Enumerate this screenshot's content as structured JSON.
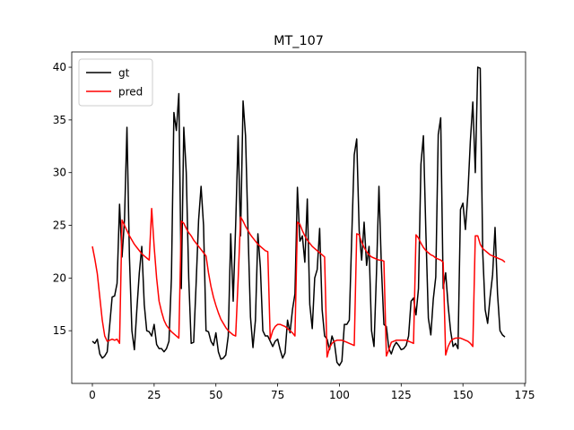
{
  "chart_data": {
    "type": "line",
    "title": "MT_107",
    "x": [
      0,
      1,
      2,
      3,
      4,
      5,
      6,
      7,
      8,
      9,
      10,
      11,
      12,
      13,
      14,
      15,
      16,
      17,
      18,
      19,
      20,
      21,
      22,
      23,
      24,
      25,
      26,
      27,
      28,
      29,
      30,
      31,
      32,
      33,
      34,
      35,
      36,
      37,
      38,
      39,
      40,
      41,
      42,
      43,
      44,
      45,
      46,
      47,
      48,
      49,
      50,
      51,
      52,
      53,
      54,
      55,
      56,
      57,
      58,
      59,
      60,
      61,
      62,
      63,
      64,
      65,
      66,
      67,
      68,
      69,
      70,
      71,
      72,
      73,
      74,
      75,
      76,
      77,
      78,
      79,
      80,
      81,
      82,
      83,
      84,
      85,
      86,
      87,
      88,
      89,
      90,
      91,
      92,
      93,
      94,
      95,
      96,
      97,
      98,
      99,
      100,
      101,
      102,
      103,
      104,
      105,
      106,
      107,
      108,
      109,
      110,
      111,
      112,
      113,
      114,
      115,
      116,
      117,
      118,
      119,
      120,
      121,
      122,
      123,
      124,
      125,
      126,
      127,
      128,
      129,
      130,
      131,
      132,
      133,
      134,
      135,
      136,
      137,
      138,
      139,
      140,
      141,
      142,
      143,
      144,
      145,
      146,
      147,
      148,
      149,
      150,
      151,
      152,
      153,
      154,
      155,
      156,
      157,
      158,
      159,
      160,
      161,
      162,
      163,
      164,
      165,
      166,
      167
    ],
    "series": [
      {
        "name": "gt",
        "color": "#000000",
        "values": [
          14,
          13.8,
          14.2,
          12.8,
          12.4,
          12.6,
          13,
          15.5,
          18.2,
          18.3,
          19.5,
          27,
          22,
          25.5,
          34.3,
          22,
          15,
          13.2,
          17,
          20.5,
          23,
          17.5,
          15,
          14.9,
          14.5,
          15.6,
          13.7,
          13.3,
          13.3,
          13,
          13.3,
          14,
          20,
          35.7,
          34,
          37.5,
          19,
          34.3,
          30,
          20,
          13.8,
          13.9,
          19.5,
          25.5,
          28.7,
          25,
          15,
          14.9,
          14,
          13.6,
          14.8,
          13,
          12.3,
          12.4,
          12.7,
          14.5,
          24.2,
          17.8,
          25,
          33.5,
          24,
          36.8,
          33.5,
          24.5,
          16.3,
          13.4,
          16,
          24.2,
          21,
          15,
          14.5,
          14.5,
          14,
          13.5,
          14,
          14.2,
          13.2,
          12.4,
          12.9,
          16,
          14.8,
          17,
          18.5,
          28.6,
          23.5,
          24,
          21.5,
          27.5,
          17.5,
          15.2,
          20,
          20.8,
          24.7,
          17,
          14.5,
          14.2,
          13.2,
          14.5,
          13.8,
          12,
          11.7,
          12.1,
          15.6,
          15.6,
          16,
          24,
          31.7,
          33.2,
          24.5,
          21.7,
          25.3,
          21.2,
          23,
          15,
          13.5,
          20.5,
          28.7,
          21,
          15.6,
          15.4,
          13.3,
          12.8,
          13.5,
          13.9,
          13.6,
          13.2,
          13.3,
          13.6,
          14.5,
          17.8,
          18.1,
          16.5,
          19,
          30.8,
          33.5,
          24.3,
          16.2,
          14.6,
          18,
          20.1,
          33.6,
          35.2,
          19,
          20.5,
          17.4,
          15,
          13.5,
          13.8,
          13.3,
          26.5,
          27.1,
          24.6,
          28,
          33,
          36.7,
          30,
          40,
          39.9,
          22.5,
          17,
          15.7,
          18.2,
          20.3,
          24.8,
          18.5,
          15,
          14.6,
          14.4
        ]
      },
      {
        "name": "pred",
        "color": "#ff0000",
        "values": [
          23,
          21.8,
          20.4,
          18.2,
          16,
          14.5,
          14,
          14.1,
          14.2,
          14.1,
          14.2,
          13.8,
          25.5,
          25,
          24.5,
          24,
          23.6,
          23.2,
          22.9,
          22.6,
          22.3,
          22.1,
          21.9,
          21.7,
          26.6,
          23,
          20,
          17.8,
          16.8,
          16,
          15.5,
          15.2,
          14.9,
          14.7,
          14.5,
          14.3,
          25.4,
          25.2,
          24.7,
          24.3,
          24,
          23.6,
          23.3,
          23,
          22.7,
          22.4,
          22.1,
          20.5,
          19.2,
          18.2,
          17.4,
          16.7,
          16.1,
          15.7,
          15.3,
          15,
          14.8,
          14.6,
          14.5,
          19.8,
          25.8,
          25.4,
          24.9,
          24.5,
          24.1,
          23.8,
          23.5,
          23.2,
          23,
          22.8,
          22.6,
          22.5,
          14.2,
          15,
          15.4,
          15.6,
          15.6,
          15.5,
          15.4,
          15.2,
          15,
          14.8,
          14.5,
          25.3,
          25.1,
          24.5,
          24,
          23.6,
          23.3,
          23,
          22.8,
          22.6,
          22.4,
          22.2,
          22,
          12.5,
          13.4,
          13.8,
          14,
          14.1,
          14.1,
          14.1,
          14,
          13.9,
          13.8,
          13.7,
          13.6,
          24.2,
          24.1,
          23.4,
          22.9,
          22.5,
          22.2,
          22,
          21.9,
          21.8,
          21.7,
          21.7,
          21.6,
          12.6,
          13.2,
          13.9,
          14,
          14.1,
          14.1,
          14.1,
          14.1,
          14.1,
          14,
          13.9,
          13.8,
          24.1,
          23.8,
          23.3,
          22.9,
          22.6,
          22.4,
          22.2,
          22.1,
          21.9,
          21.8,
          21.7,
          21.5,
          12.7,
          13.5,
          14,
          14.2,
          14.3,
          14.3,
          14.3,
          14.2,
          14.1,
          14,
          13.8,
          13.5,
          24,
          24,
          23.2,
          22.8,
          22.6,
          22.4,
          22.2,
          22.1,
          22,
          21.9,
          21.8,
          21.7,
          21.5
        ]
      }
    ],
    "xlim": [
      -8.35,
      175.35
    ],
    "xticks": [
      0,
      25,
      50,
      75,
      100,
      125,
      150,
      175
    ],
    "ylim": [
      10.0,
      41.45
    ],
    "yticks": [
      15,
      20,
      25,
      30,
      35,
      40
    ],
    "legend": "upper left"
  }
}
